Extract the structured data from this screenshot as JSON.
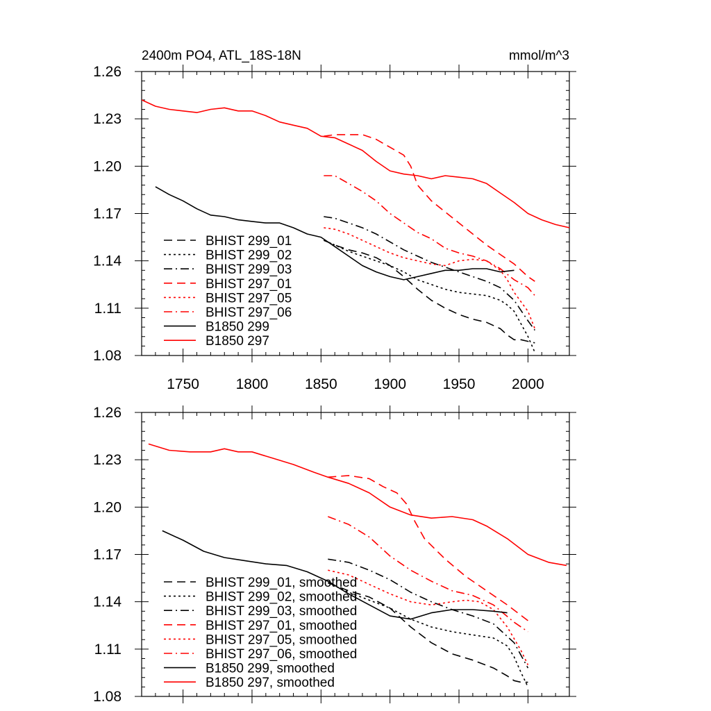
{
  "chart_data": [
    {
      "type": "line",
      "title": "2400m PO4, ATL_18S-18N",
      "units": "mmol/m^3",
      "xlabel": "",
      "ylabel": "",
      "xlim": [
        1720,
        2030
      ],
      "ylim": [
        1.08,
        1.26
      ],
      "xticks": [
        1750,
        1800,
        1850,
        1900,
        1950,
        2000
      ],
      "xtick_labels": [
        "1750",
        "1800",
        "1850",
        "1900",
        "1950",
        "2000"
      ],
      "yticks": [
        1.08,
        1.11,
        1.14,
        1.17,
        1.2,
        1.23,
        1.26
      ],
      "ytick_labels": [
        "1.08",
        "1.11",
        "1.14",
        "1.17",
        "1.20",
        "1.23",
        "1.26"
      ],
      "legend_position": "bottom-left",
      "series": [
        {
          "name": "BHIST 299_01",
          "color": "#000000",
          "dash": "dash",
          "x": [
            1852,
            1860,
            1870,
            1880,
            1890,
            1900,
            1910,
            1920,
            1930,
            1940,
            1950,
            1960,
            1970,
            1980,
            1985,
            1990,
            1995,
            2000,
            2005
          ],
          "y": [
            1.153,
            1.15,
            1.147,
            1.145,
            1.142,
            1.137,
            1.13,
            1.122,
            1.115,
            1.11,
            1.106,
            1.103,
            1.101,
            1.097,
            1.093,
            1.09,
            1.09,
            1.089,
            1.088
          ]
        },
        {
          "name": "BHIST 299_02",
          "color": "#000000",
          "dash": "dot",
          "x": [
            1852,
            1860,
            1870,
            1880,
            1890,
            1900,
            1910,
            1920,
            1930,
            1940,
            1950,
            1960,
            1970,
            1980,
            1985,
            1990,
            1995,
            2000,
            2005
          ],
          "y": [
            1.153,
            1.15,
            1.146,
            1.143,
            1.14,
            1.137,
            1.133,
            1.128,
            1.125,
            1.122,
            1.12,
            1.119,
            1.118,
            1.115,
            1.112,
            1.108,
            1.1,
            1.092,
            1.082
          ]
        },
        {
          "name": "BHIST 299_03",
          "color": "#000000",
          "dash": "dashdot",
          "x": [
            1852,
            1860,
            1870,
            1880,
            1890,
            1900,
            1910,
            1920,
            1930,
            1940,
            1950,
            1960,
            1970,
            1980,
            1990,
            2000,
            2005
          ],
          "y": [
            1.168,
            1.167,
            1.164,
            1.161,
            1.157,
            1.152,
            1.147,
            1.143,
            1.139,
            1.136,
            1.133,
            1.13,
            1.127,
            1.123,
            1.115,
            1.102,
            1.096
          ]
        },
        {
          "name": "BHIST 297_01",
          "color": "#ff0000",
          "dash": "dash",
          "x": [
            1852,
            1860,
            1870,
            1880,
            1890,
            1900,
            1910,
            1915,
            1920,
            1930,
            1940,
            1950,
            1960,
            1970,
            1980,
            1990,
            2000,
            2005
          ],
          "y": [
            1.219,
            1.22,
            1.22,
            1.22,
            1.217,
            1.212,
            1.207,
            1.2,
            1.188,
            1.178,
            1.171,
            1.164,
            1.157,
            1.15,
            1.144,
            1.138,
            1.13,
            1.127
          ]
        },
        {
          "name": "BHIST 297_05",
          "color": "#ff0000",
          "dash": "dot",
          "x": [
            1852,
            1860,
            1870,
            1880,
            1890,
            1900,
            1910,
            1920,
            1930,
            1940,
            1950,
            1960,
            1970,
            1975,
            1980,
            1985,
            1990,
            2000,
            2005
          ],
          "y": [
            1.161,
            1.16,
            1.157,
            1.153,
            1.149,
            1.145,
            1.142,
            1.14,
            1.138,
            1.137,
            1.14,
            1.141,
            1.14,
            1.137,
            1.134,
            1.128,
            1.12,
            1.108,
            1.097
          ]
        },
        {
          "name": "BHIST 297_06",
          "color": "#ff0000",
          "dash": "dashdot",
          "x": [
            1852,
            1860,
            1870,
            1880,
            1890,
            1900,
            1910,
            1920,
            1930,
            1940,
            1950,
            1960,
            1970,
            1980,
            1990,
            2000,
            2005
          ],
          "y": [
            1.194,
            1.194,
            1.189,
            1.184,
            1.178,
            1.17,
            1.164,
            1.158,
            1.154,
            1.148,
            1.145,
            1.143,
            1.14,
            1.135,
            1.128,
            1.123,
            1.118
          ]
        },
        {
          "name": "B1850 299",
          "color": "#000000",
          "dash": "solid",
          "x": [
            1730,
            1740,
            1750,
            1760,
            1770,
            1780,
            1790,
            1800,
            1810,
            1820,
            1830,
            1840,
            1850,
            1860,
            1870,
            1880,
            1890,
            1900,
            1910,
            1920,
            1930,
            1940,
            1950,
            1960,
            1970,
            1980,
            1990
          ],
          "y": [
            1.187,
            1.182,
            1.178,
            1.173,
            1.169,
            1.168,
            1.166,
            1.165,
            1.164,
            1.164,
            1.161,
            1.157,
            1.155,
            1.149,
            1.143,
            1.137,
            1.133,
            1.13,
            1.128,
            1.13,
            1.132,
            1.134,
            1.134,
            1.135,
            1.135,
            1.133,
            1.134
          ]
        },
        {
          "name": "B1850 297",
          "color": "#ff0000",
          "dash": "solid",
          "x": [
            1720,
            1730,
            1740,
            1750,
            1760,
            1770,
            1780,
            1790,
            1800,
            1810,
            1820,
            1830,
            1840,
            1850,
            1860,
            1870,
            1880,
            1890,
            1900,
            1910,
            1920,
            1930,
            1940,
            1950,
            1960,
            1970,
            1980,
            1990,
            2000,
            2010,
            2020,
            2030
          ],
          "y": [
            1.242,
            1.238,
            1.236,
            1.235,
            1.234,
            1.236,
            1.237,
            1.235,
            1.235,
            1.232,
            1.228,
            1.226,
            1.224,
            1.219,
            1.218,
            1.214,
            1.21,
            1.203,
            1.197,
            1.195,
            1.194,
            1.192,
            1.194,
            1.193,
            1.192,
            1.189,
            1.183,
            1.177,
            1.17,
            1.166,
            1.163,
            1.161
          ]
        }
      ]
    },
    {
      "type": "line",
      "title": "",
      "units": "",
      "xlabel": "",
      "ylabel": "",
      "xlim": [
        1720,
        2030
      ],
      "ylim": [
        1.08,
        1.26
      ],
      "xticks": [
        1750,
        1800,
        1850,
        1900,
        1950,
        2000
      ],
      "xtick_labels": [],
      "yticks": [
        1.08,
        1.11,
        1.14,
        1.17,
        1.2,
        1.23,
        1.26
      ],
      "ytick_labels": [
        "1.08",
        "1.11",
        "1.14",
        "1.17",
        "1.20",
        "1.23",
        "1.26"
      ],
      "legend_position": "bottom-left",
      "series": [
        {
          "name": "BHIST 299_01, smoothed",
          "color": "#000000",
          "dash": "dash",
          "x": [
            1855,
            1870,
            1885,
            1900,
            1915,
            1930,
            1945,
            1960,
            1975,
            1985,
            1990,
            1995,
            2000
          ],
          "y": [
            1.152,
            1.147,
            1.143,
            1.136,
            1.124,
            1.114,
            1.107,
            1.103,
            1.098,
            1.093,
            1.09,
            1.089,
            1.089
          ]
        },
        {
          "name": "BHIST 299_02, smoothed",
          "color": "#000000",
          "dash": "dot",
          "x": [
            1855,
            1870,
            1885,
            1900,
            1915,
            1930,
            1945,
            1960,
            1975,
            1985,
            1990,
            1995,
            2000
          ],
          "y": [
            1.152,
            1.146,
            1.141,
            1.136,
            1.129,
            1.124,
            1.121,
            1.119,
            1.117,
            1.112,
            1.105,
            1.095,
            1.086
          ]
        },
        {
          "name": "BHIST 299_03, smoothed",
          "color": "#000000",
          "dash": "dashdot",
          "x": [
            1855,
            1870,
            1885,
            1900,
            1915,
            1930,
            1945,
            1960,
            1975,
            1990,
            2000
          ],
          "y": [
            1.167,
            1.165,
            1.16,
            1.154,
            1.146,
            1.14,
            1.135,
            1.131,
            1.126,
            1.114,
            1.098
          ]
        },
        {
          "name": "BHIST 297_01, smoothed",
          "color": "#ff0000",
          "dash": "dash",
          "x": [
            1855,
            1870,
            1885,
            1895,
            1905,
            1912,
            1918,
            1925,
            1940,
            1955,
            1970,
            1985,
            2000
          ],
          "y": [
            1.219,
            1.22,
            1.218,
            1.213,
            1.209,
            1.202,
            1.191,
            1.18,
            1.167,
            1.156,
            1.147,
            1.138,
            1.128
          ]
        },
        {
          "name": "BHIST 297_05, smoothed",
          "color": "#ff0000",
          "dash": "dot",
          "x": [
            1855,
            1870,
            1885,
            1900,
            1915,
            1930,
            1945,
            1955,
            1965,
            1975,
            1985,
            1995,
            2000
          ],
          "y": [
            1.16,
            1.157,
            1.151,
            1.145,
            1.14,
            1.138,
            1.14,
            1.141,
            1.14,
            1.135,
            1.124,
            1.109,
            1.1
          ]
        },
        {
          "name": "BHIST 297_06, smoothed",
          "color": "#ff0000",
          "dash": "dashdot",
          "x": [
            1855,
            1870,
            1885,
            1900,
            1915,
            1930,
            1945,
            1960,
            1975,
            1990,
            2000
          ],
          "y": [
            1.194,
            1.189,
            1.181,
            1.169,
            1.16,
            1.153,
            1.147,
            1.144,
            1.138,
            1.127,
            1.121
          ]
        },
        {
          "name": "B1850 299, smoothed",
          "color": "#000000",
          "dash": "solid",
          "x": [
            1735,
            1750,
            1765,
            1780,
            1795,
            1810,
            1825,
            1840,
            1855,
            1870,
            1885,
            1900,
            1915,
            1930,
            1945,
            1960,
            1975,
            1985
          ],
          "y": [
            1.185,
            1.179,
            1.172,
            1.168,
            1.166,
            1.164,
            1.163,
            1.159,
            1.153,
            1.145,
            1.138,
            1.131,
            1.129,
            1.133,
            1.135,
            1.135,
            1.134,
            1.133
          ]
        },
        {
          "name": "B1850 297, smoothed",
          "color": "#ff0000",
          "dash": "solid",
          "x": [
            1725,
            1740,
            1755,
            1770,
            1780,
            1790,
            1800,
            1815,
            1830,
            1845,
            1855,
            1870,
            1885,
            1900,
            1915,
            1930,
            1945,
            1960,
            1970,
            1985,
            2000,
            2015,
            2028
          ],
          "y": [
            1.24,
            1.236,
            1.235,
            1.235,
            1.237,
            1.235,
            1.235,
            1.231,
            1.227,
            1.222,
            1.219,
            1.215,
            1.209,
            1.2,
            1.195,
            1.193,
            1.194,
            1.192,
            1.188,
            1.18,
            1.17,
            1.165,
            1.163
          ]
        }
      ]
    }
  ]
}
